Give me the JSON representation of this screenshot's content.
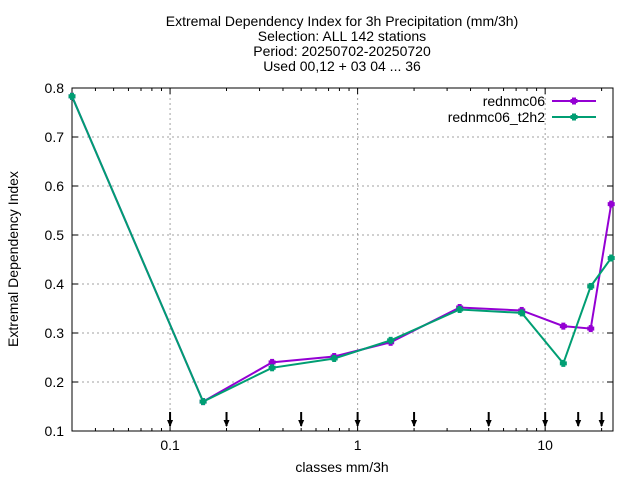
{
  "chart_data": {
    "type": "line",
    "title_lines": [
      "Extremal Dependency Index  for 3h Precipitation (mm/3h)",
      "Selection: ALL    142 stations",
      "Period: 20250702-20250720",
      "Used 00,12 + 03 04 ... 36"
    ],
    "xlabel": "classes mm/3h",
    "ylabel": "Extremal Dependency Index",
    "xscale": "log",
    "xlim": [
      0.03,
      23
    ],
    "ylim": [
      0.1,
      0.8
    ],
    "xticks": [
      {
        "v": 0.1,
        "label": "0.1"
      },
      {
        "v": 1,
        "label": "1"
      },
      {
        "v": 10,
        "label": "10"
      }
    ],
    "yticks": [
      {
        "v": 0.1,
        "label": "0.1"
      },
      {
        "v": 0.2,
        "label": "0.2"
      },
      {
        "v": 0.3,
        "label": "0.3"
      },
      {
        "v": 0.4,
        "label": "0.4"
      },
      {
        "v": 0.5,
        "label": "0.5"
      },
      {
        "v": 0.6,
        "label": "0.6"
      },
      {
        "v": 0.7,
        "label": "0.7"
      },
      {
        "v": 0.8,
        "label": "0.8"
      }
    ],
    "class_markers": [
      0.1,
      0.2,
      0.5,
      1,
      2,
      5,
      10,
      15,
      20
    ],
    "grid": true,
    "legend_position": "top-right",
    "series": [
      {
        "name": "rednmc06",
        "color": "#9400d3",
        "x": [
          0.03,
          0.15,
          0.35,
          0.75,
          1.5,
          3.5,
          7.5,
          12.5,
          17.5,
          22.5
        ],
        "y": [
          0.783,
          0.16,
          0.24,
          0.252,
          0.281,
          0.352,
          0.346,
          0.314,
          0.309,
          0.563
        ]
      },
      {
        "name": "rednmc06_t2h2",
        "color": "#009e73",
        "x": [
          0.03,
          0.15,
          0.35,
          0.75,
          1.5,
          3.5,
          7.5,
          12.5,
          17.5,
          22.5
        ],
        "y": [
          0.783,
          0.16,
          0.229,
          0.248,
          0.285,
          0.348,
          0.341,
          0.238,
          0.395,
          0.453
        ]
      }
    ]
  }
}
